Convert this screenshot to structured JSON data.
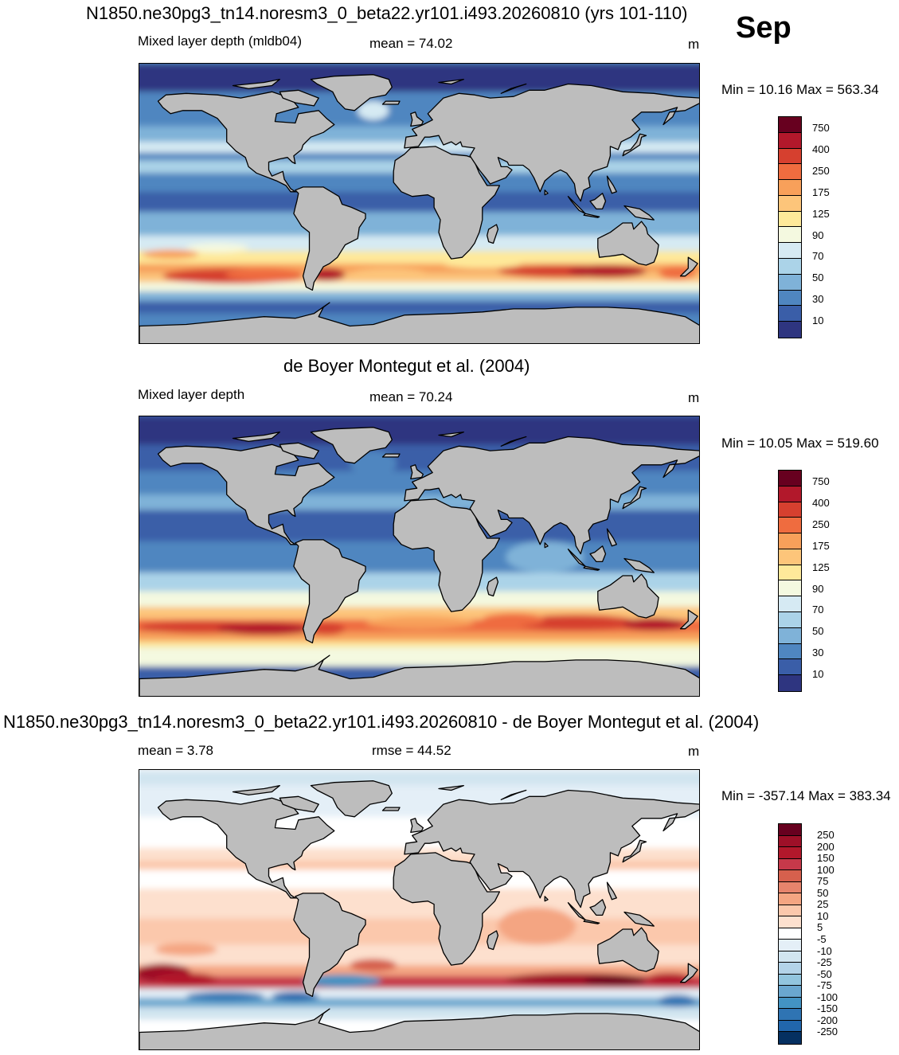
{
  "header": {
    "title": "N1850.ne30pg3_tn14.noresm3_0_beta22.yr101.i493.20260810 (yrs 101-110)",
    "month": "Sep"
  },
  "panels": [
    {
      "title": "",
      "left_label": "Mixed layer depth (mldb04)",
      "center_label": "mean =  74.02",
      "units": "m",
      "minmax": "Min =  10.16 Max = 563.34",
      "scale": "positive",
      "levels": [
        "750",
        "400",
        "250",
        "175",
        "125",
        "90",
        "70",
        "50",
        "30",
        "10"
      ]
    },
    {
      "title": "de Boyer Montegut et al. (2004)",
      "left_label": "Mixed layer depth",
      "center_label": "mean =  70.24",
      "units": "m",
      "minmax": "Min =  10.05 Max = 519.60",
      "scale": "positive",
      "levels": [
        "750",
        "400",
        "250",
        "175",
        "125",
        "90",
        "70",
        "50",
        "30",
        "10"
      ]
    },
    {
      "title": "N1850.ne30pg3_tn14.noresm3_0_beta22.yr101.i493.20260810 - de Boyer Montegut et al. (2004)",
      "left_label": "mean =   3.78",
      "center_label": "rmse =  44.52",
      "units": "m",
      "minmax": "Min = -357.14 Max = 383.34",
      "scale": "diverging",
      "levels": [
        "250",
        "200",
        "150",
        "100",
        "75",
        "50",
        "25",
        "10",
        "5",
        "-5",
        "-10",
        "-25",
        "-50",
        "-75",
        "-100",
        "-150",
        "-200",
        "-250"
      ]
    }
  ],
  "colors": {
    "land": "#bdbdbd",
    "positive_palette": [
      "#67001f",
      "#b2182b",
      "#d6402f",
      "#ef6c3f",
      "#f8a05a",
      "#fdc57a",
      "#fee99a",
      "#f4f9e0",
      "#d6eaf3",
      "#abd3e8",
      "#7fb2d8",
      "#4f86c0",
      "#3a5ea8",
      "#2e3580"
    ],
    "diverging_palette": [
      "#67001f",
      "#9e1028",
      "#b2182b",
      "#c6394a",
      "#d6604d",
      "#e6846c",
      "#f4a582",
      "#fbc8ac",
      "#fde0ce",
      "#ffffff",
      "#e4eff7",
      "#d1e5f0",
      "#b3d3e8",
      "#92c5de",
      "#6aa7cf",
      "#4393c3",
      "#2f74b3",
      "#2166ac",
      "#053061"
    ]
  }
}
